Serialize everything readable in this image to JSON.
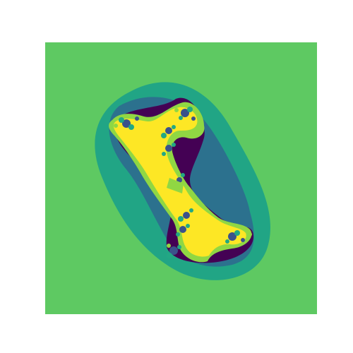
{
  "figure": {
    "kind": "escape-time fractal rendering (Julia set style)",
    "colormap": "viridis",
    "colors": {
      "page_background": "#ffffff",
      "canvas_background": "#5ec962",
      "level_outer_halo": "#21a585",
      "level_mid_halo": "#2c718e",
      "level_inner": "#440154",
      "level_core_band": "#fde725",
      "level_light_band": "#90d743",
      "level_teal_speckle": "#22a884",
      "level_navy_speckle": "#3b528b"
    },
    "description_tags": [
      "fractal",
      "bone-shaped",
      "diagonal",
      "symmetric"
    ]
  }
}
